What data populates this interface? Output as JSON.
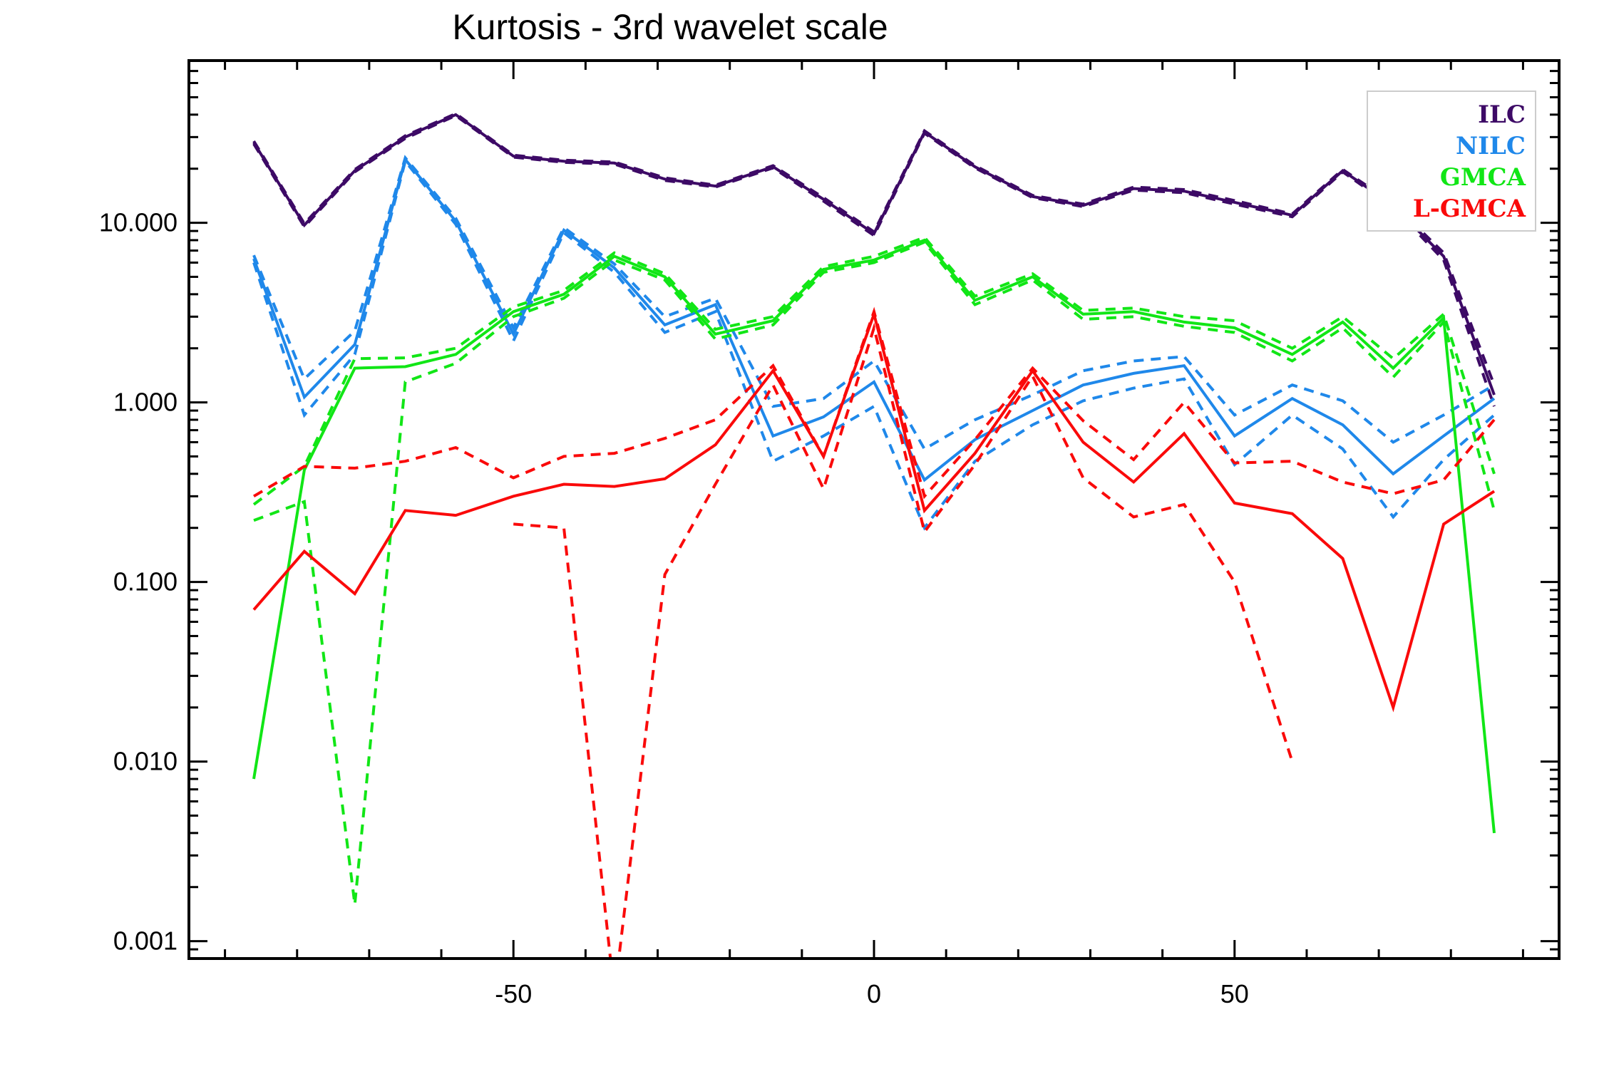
{
  "chart_data": {
    "type": "line",
    "title": "Kurtosis - 3rd wavelet scale",
    "xlabel": "",
    "ylabel": "",
    "xlim": [
      -95,
      95
    ],
    "ylim": [
      0.0008,
      80
    ],
    "yscale": "log",
    "x_ticks": [
      -50,
      0,
      50
    ],
    "y_ticks": [
      0.001,
      0.01,
      0.1,
      1,
      10
    ],
    "y_tick_labels": [
      "0.001",
      "0.010",
      "0.100",
      "1.000",
      "10.000"
    ],
    "grid": false,
    "legend_position": "top-right",
    "x": [
      -86,
      -79,
      -72,
      -65,
      -58,
      -50,
      -43,
      -36,
      -29,
      -22,
      -14,
      -7,
      0,
      7,
      14,
      22,
      29,
      36,
      43,
      50,
      58,
      65,
      72,
      79,
      86
    ],
    "series": [
      {
        "name": "ILC",
        "color": "#3d0a66",
        "values": [
          28,
          9.7,
          19.5,
          30,
          40,
          23.5,
          22,
          21.5,
          17.5,
          16,
          20.5,
          13.5,
          8.7,
          32,
          20.5,
          14,
          12.5,
          15.5,
          15,
          13,
          11,
          19.5,
          12.5,
          6.5,
          1.1
        ],
        "upper": [
          28.5,
          9.9,
          19.8,
          30.5,
          40.5,
          23.8,
          22.3,
          21.8,
          17.8,
          16.2,
          20.8,
          13.8,
          8.9,
          32.5,
          20.8,
          14.2,
          12.7,
          15.8,
          15.3,
          13.3,
          11.2,
          19.8,
          12.8,
          6.8,
          1.25
        ],
        "lower": [
          27.5,
          9.5,
          19.2,
          29.5,
          39.5,
          23.2,
          21.7,
          21.2,
          17.2,
          15.8,
          20.2,
          13.2,
          8.5,
          31.5,
          20.2,
          13.8,
          12.3,
          15.2,
          14.7,
          12.7,
          10.8,
          19.2,
          12.2,
          6.2,
          0.95
        ]
      },
      {
        "name": "NILC",
        "color": "#1f88ea",
        "values": [
          6.3,
          1.07,
          2.1,
          22.5,
          10.2,
          2.4,
          9.1,
          5.6,
          2.7,
          3.5,
          0.65,
          0.83,
          1.3,
          0.37,
          0.62,
          0.9,
          1.25,
          1.45,
          1.6,
          0.65,
          1.05,
          0.75,
          0.4,
          0.65,
          1.05
        ],
        "upper": [
          6.6,
          1.35,
          2.5,
          23,
          10.6,
          2.6,
          9.4,
          5.9,
          3.0,
          3.8,
          0.95,
          1.05,
          1.7,
          0.55,
          0.8,
          1.1,
          1.5,
          1.7,
          1.8,
          0.85,
          1.25,
          1.02,
          0.6,
          0.85,
          1.25
        ],
        "lower": [
          6.0,
          0.85,
          1.85,
          22,
          9.8,
          2.2,
          8.8,
          5.3,
          2.45,
          3.2,
          0.47,
          0.65,
          0.95,
          0.2,
          0.47,
          0.75,
          1.02,
          1.2,
          1.35,
          0.45,
          0.85,
          0.55,
          0.23,
          0.48,
          0.85
        ]
      },
      {
        "name": "GMCA",
        "color": "#11e616",
        "values": [
          0.008,
          0.42,
          1.55,
          1.58,
          1.85,
          3.2,
          4.0,
          6.5,
          5.0,
          2.4,
          2.85,
          5.5,
          6.2,
          8.0,
          3.7,
          5.0,
          3.1,
          3.2,
          2.8,
          2.6,
          1.85,
          2.8,
          1.55,
          2.95,
          0.004
        ],
        "upper": [
          0.27,
          0.44,
          1.75,
          1.77,
          2.0,
          3.4,
          4.2,
          6.8,
          5.2,
          2.55,
          3.0,
          5.7,
          6.5,
          8.3,
          3.9,
          5.2,
          3.25,
          3.35,
          3.0,
          2.85,
          2.0,
          3.0,
          1.75,
          3.1,
          0.4
        ],
        "lower": [
          0.22,
          0.28,
          0.0016,
          1.3,
          1.65,
          3.0,
          3.8,
          6.2,
          4.8,
          2.25,
          2.7,
          5.3,
          6.0,
          7.8,
          3.5,
          4.8,
          2.9,
          3.0,
          2.65,
          2.45,
          1.7,
          2.6,
          1.38,
          2.8,
          0.25
        ]
      },
      {
        "name": "L-GMCA",
        "color": "#fa0a0a",
        "values": [
          0.07,
          0.148,
          0.086,
          0.25,
          0.235,
          0.3,
          0.35,
          0.34,
          0.375,
          0.58,
          1.5,
          0.5,
          3.1,
          0.25,
          0.52,
          1.5,
          0.6,
          0.36,
          0.67,
          0.275,
          0.24,
          0.135,
          0.02,
          0.21,
          0.32
        ],
        "upper": [
          0.3,
          0.44,
          0.43,
          0.47,
          0.56,
          0.38,
          0.5,
          0.52,
          0.63,
          0.8,
          1.6,
          0.5,
          3.2,
          0.3,
          0.62,
          1.55,
          0.79,
          0.48,
          1.0,
          0.46,
          0.47,
          0.36,
          0.31,
          0.37,
          0.8
        ],
        "lower": [
          null,
          null,
          null,
          null,
          null,
          0.21,
          0.2,
          0.0005,
          0.11,
          0.35,
          1.25,
          0.33,
          2.6,
          0.19,
          0.45,
          1.4,
          0.38,
          0.23,
          0.27,
          0.1,
          0.01,
          null,
          null,
          null,
          null
        ]
      }
    ]
  }
}
